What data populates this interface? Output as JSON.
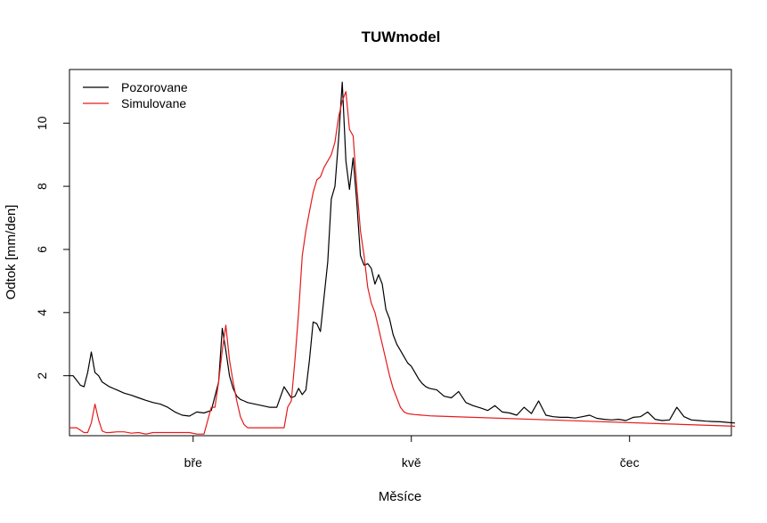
{
  "chart_data": {
    "type": "line",
    "title": "TUWmodel",
    "xlabel": "Měsíce",
    "ylabel": "Odtok [mm/den]",
    "xlim": [
      1,
      183
    ],
    "ylim": [
      0.1,
      11.7
    ],
    "grid": false,
    "legend_position": "top-left",
    "x_ticks": [
      {
        "label": "bře",
        "x": 35
      },
      {
        "label": "kvě",
        "x": 95
      },
      {
        "label": "čec",
        "x": 155
      }
    ],
    "y_ticks": [
      2,
      4,
      6,
      8,
      10
    ],
    "series": [
      {
        "name": "Pozorovane",
        "color": "#000000",
        "x": [
          1,
          2,
          3,
          4,
          5,
          6,
          7,
          8,
          9,
          10,
          12,
          14,
          16,
          18,
          20,
          22,
          24,
          26,
          28,
          30,
          32,
          34,
          36,
          38,
          40,
          42,
          43,
          44,
          45,
          46,
          47,
          48,
          49,
          50,
          52,
          54,
          56,
          58,
          60,
          62,
          63,
          64,
          65,
          66,
          67,
          68,
          69,
          70,
          71,
          72,
          73,
          74,
          75,
          76,
          77,
          78,
          79,
          80,
          81,
          82,
          83,
          84,
          85,
          86,
          87,
          88,
          89,
          90,
          91,
          92,
          93,
          94,
          95,
          96,
          97,
          98,
          99,
          100,
          102,
          104,
          106,
          108,
          110,
          112,
          114,
          116,
          118,
          120,
          122,
          124,
          126,
          128,
          130,
          132,
          134,
          136,
          138,
          140,
          142,
          144,
          146,
          148,
          150,
          152,
          154,
          156,
          158,
          160,
          162,
          164,
          166,
          168,
          170,
          172,
          174,
          176,
          178,
          180,
          182,
          184
        ],
        "values": [
          2.0,
          2.0,
          1.85,
          1.7,
          1.65,
          2.1,
          2.75,
          2.1,
          2.0,
          1.8,
          1.65,
          1.55,
          1.45,
          1.38,
          1.3,
          1.22,
          1.15,
          1.1,
          1.0,
          0.85,
          0.75,
          0.72,
          0.85,
          0.82,
          0.9,
          1.8,
          3.5,
          2.8,
          2.0,
          1.6,
          1.35,
          1.25,
          1.2,
          1.15,
          1.1,
          1.05,
          1.0,
          1.0,
          1.65,
          1.3,
          1.35,
          1.6,
          1.4,
          1.55,
          2.5,
          3.7,
          3.65,
          3.4,
          4.5,
          5.6,
          7.6,
          8.0,
          9.5,
          11.3,
          8.8,
          7.9,
          8.9,
          7.5,
          5.8,
          5.5,
          5.55,
          5.4,
          4.9,
          5.2,
          4.9,
          4.1,
          3.8,
          3.3,
          3.0,
          2.8,
          2.6,
          2.4,
          2.3,
          2.1,
          1.9,
          1.75,
          1.65,
          1.6,
          1.55,
          1.35,
          1.3,
          1.5,
          1.15,
          1.05,
          0.98,
          0.9,
          1.05,
          0.85,
          0.82,
          0.75,
          1.0,
          0.8,
          1.2,
          0.75,
          0.7,
          0.68,
          0.68,
          0.66,
          0.7,
          0.75,
          0.65,
          0.62,
          0.6,
          0.62,
          0.58,
          0.68,
          0.7,
          0.85,
          0.62,
          0.58,
          0.6,
          1.0,
          0.7,
          0.6,
          0.58,
          0.56,
          0.55,
          0.54,
          0.52,
          0.5
        ]
      },
      {
        "name": "Simulovane",
        "color": "#e41a1c",
        "x": [
          1,
          3,
          5,
          6,
          7,
          8,
          9,
          10,
          11,
          12,
          14,
          16,
          18,
          20,
          22,
          24,
          26,
          28,
          30,
          32,
          34,
          36,
          38,
          40,
          41,
          42,
          43,
          44,
          45,
          46,
          47,
          48,
          49,
          50,
          52,
          54,
          56,
          58,
          60,
          61,
          62,
          63,
          64,
          65,
          66,
          67,
          68,
          69,
          70,
          71,
          72,
          73,
          74,
          75,
          76,
          77,
          78,
          79,
          80,
          81,
          82,
          83,
          84,
          85,
          86,
          87,
          88,
          89,
          90,
          91,
          92,
          93,
          94,
          95,
          96,
          97,
          98,
          99,
          100,
          102,
          184
        ],
        "values": [
          0.35,
          0.35,
          0.2,
          0.2,
          0.5,
          1.1,
          0.6,
          0.25,
          0.2,
          0.2,
          0.22,
          0.22,
          0.18,
          0.2,
          0.15,
          0.2,
          0.2,
          0.2,
          0.2,
          0.2,
          0.2,
          0.15,
          0.15,
          1.0,
          1.0,
          1.8,
          2.8,
          3.6,
          2.5,
          1.8,
          1.2,
          0.7,
          0.45,
          0.35,
          0.35,
          0.35,
          0.35,
          0.35,
          0.35,
          1.0,
          1.2,
          2.5,
          4.0,
          5.8,
          6.6,
          7.2,
          7.8,
          8.2,
          8.3,
          8.6,
          8.8,
          9.0,
          9.4,
          10.2,
          10.7,
          11.0,
          9.8,
          9.6,
          8.0,
          6.6,
          5.8,
          4.8,
          4.3,
          4.0,
          3.5,
          3.0,
          2.5,
          2.0,
          1.6,
          1.3,
          1.0,
          0.85,
          0.8,
          0.78,
          0.77,
          0.76,
          0.75,
          0.74,
          0.73,
          0.72,
          0.4
        ]
      }
    ]
  }
}
